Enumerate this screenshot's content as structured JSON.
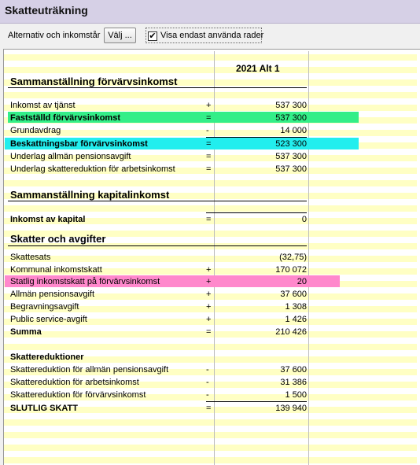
{
  "window": {
    "title": "Skatteuträkning"
  },
  "toolbar": {
    "alternatives_label": "Alternativ och inkomstår",
    "choose_button": "Välj ...",
    "show_used_rows_label": "Visa endast använda rader",
    "show_used_rows_checked": true
  },
  "column": {
    "header": "2021 Alt 1"
  },
  "colors": {
    "row_stripe": "#ffffc4",
    "green_highlight": "#33ee88",
    "cyan_highlight": "#22eeee",
    "pink_highlight": "#ff88cc"
  },
  "sections": {
    "earned_income": {
      "title": "Sammanställning förvärvsinkomst",
      "rows": [
        {
          "label": "Inkomst av tjänst",
          "op": "+",
          "value": "537 300"
        },
        {
          "label": "Fastställd förvärvsinkomst",
          "op": "=",
          "value": "537 300"
        },
        {
          "label": "Grundavdrag",
          "op": "-",
          "value": "14 000"
        },
        {
          "label": "Beskattningsbar förvärvsinkomst",
          "op": "=",
          "value": "523 300"
        },
        {
          "label": "Underlag allmän pensionsavgift",
          "op": "=",
          "value": "537 300"
        },
        {
          "label": "Underlag skattereduktion för arbetsinkomst",
          "op": "=",
          "value": "537 300"
        }
      ]
    },
    "capital_income": {
      "title": "Sammanställning kapitalinkomst",
      "rows": [
        {
          "label": "Inkomst av kapital",
          "op": "=",
          "value": "0"
        }
      ]
    },
    "taxes": {
      "title": "Skatter och avgifter",
      "rows": [
        {
          "label": "Skattesats",
          "op": "",
          "value": "(32,75)"
        },
        {
          "label": "Kommunal inkomstskatt",
          "op": "+",
          "value": "170 072"
        },
        {
          "label": "Statlig inkomstskatt på förvärvsinkomst",
          "op": "+",
          "value": "20"
        },
        {
          "label": "Allmän pensionsavgift",
          "op": "+",
          "value": "37 600"
        },
        {
          "label": "Begravningsavgift",
          "op": "+",
          "value": "1 308"
        },
        {
          "label": "Public service-avgift",
          "op": "+",
          "value": "1 426"
        },
        {
          "label": "Summa",
          "op": "=",
          "value": "210 426"
        }
      ]
    },
    "reductions": {
      "title": "Skattereduktioner",
      "rows": [
        {
          "label": "Skattereduktion för allmän pensionsavgift",
          "op": "-",
          "value": "37 600"
        },
        {
          "label": "Skattereduktion för arbetsinkomst",
          "op": "-",
          "value": "31 386"
        },
        {
          "label": "Skattereduktion för förvärvsinkomst",
          "op": "-",
          "value": "1 500"
        },
        {
          "label": "SLUTLIG SKATT",
          "op": "=",
          "value": "139 940"
        }
      ]
    }
  }
}
